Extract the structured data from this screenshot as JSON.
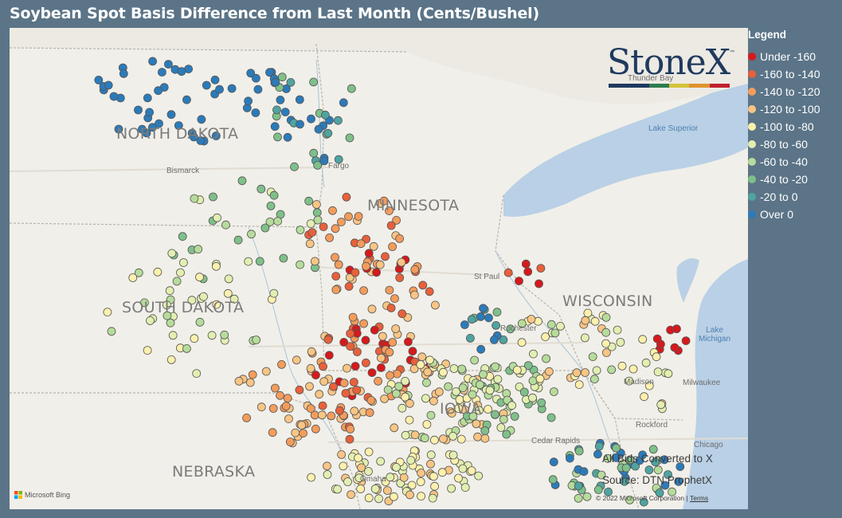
{
  "title": "Soybean Spot Basis Difference from Last Month (Cents/Bushel)",
  "map": {
    "states": [
      "NORTH DAKOTA",
      "MINNESOTA",
      "SOUTH DAKOTA",
      "WISCONSIN",
      "IOWA",
      "NEBRASKA"
    ],
    "places": [
      "Bismarck",
      "Fargo",
      "Thunder Bay",
      "St Paul",
      "Rochester",
      "Madison",
      "Milwaukee",
      "Rockford",
      "Cedar Rapids",
      "Chicago",
      "Omaha"
    ],
    "lakes": [
      "Lake Superior",
      "Lake Michigan"
    ],
    "bing_attribution": "Microsoft Bing",
    "copyright": "© 2022 Microsoft Corporation",
    "terms_link": "Terms"
  },
  "logo": {
    "text": "StoneX",
    "trademark": "™",
    "bar_colors": [
      "#1f3a5f",
      "#1f3a5f",
      "#2e7d4f",
      "#d4c23a",
      "#e0932f",
      "#c0202e"
    ]
  },
  "notes": {
    "conversion": "All Bids Converted to X",
    "source": "Source: DTN ProphetX"
  },
  "legend": {
    "title": "Legend",
    "items": [
      {
        "label": "Under -160",
        "color": "#d7191c"
      },
      {
        "label": "-160 to -140",
        "color": "#e8603a"
      },
      {
        "label": "-140 to -120",
        "color": "#f39c5c"
      },
      {
        "label": "-120 to -100",
        "color": "#f8c584"
      },
      {
        "label": "-100 to -80",
        "color": "#fdf0ad"
      },
      {
        "label": "-80 to -60",
        "color": "#e2efb0"
      },
      {
        "label": "-60 to -40",
        "color": "#b6dc9b"
      },
      {
        "label": "-40 to -20",
        "color": "#7fc08a"
      },
      {
        "label": "-20 to 0",
        "color": "#4fa4a0"
      },
      {
        "label": "Over 0",
        "color": "#2b7bba"
      }
    ]
  }
}
